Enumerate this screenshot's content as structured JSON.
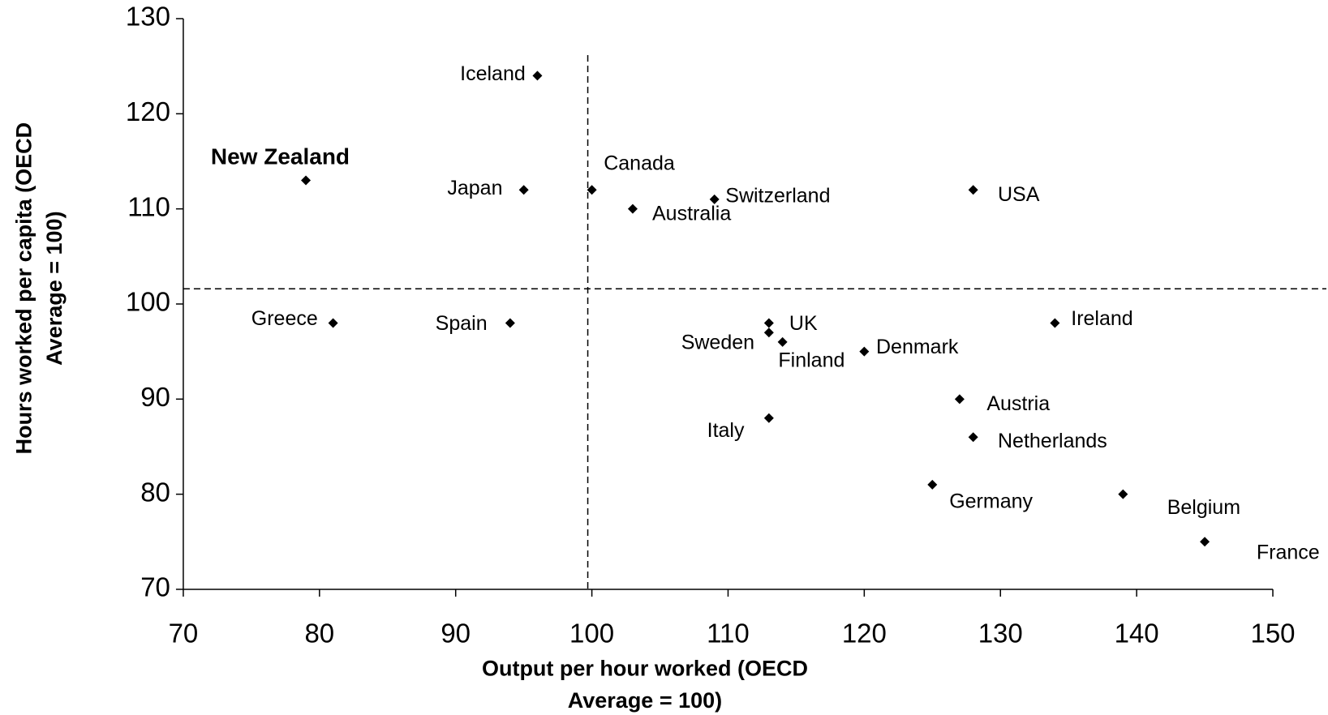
{
  "chart_data": {
    "type": "scatter",
    "x_label": [
      "Output per hour worked (OECD",
      "Average = 100)"
    ],
    "y_label": [
      "Hours worked per capita (OECD",
      "Average = 100)"
    ],
    "xlim": [
      70,
      150
    ],
    "xticks": [
      70,
      80,
      90,
      100,
      110,
      120,
      130,
      140,
      150
    ],
    "ylim": [
      70,
      130
    ],
    "yticks": [
      70,
      80,
      90,
      100,
      110,
      120,
      130
    ],
    "color": "#000000",
    "reference_lines": {
      "x": 99.7,
      "y": 101.6
    },
    "points": [
      {
        "label": "New Zealand",
        "x": 79,
        "y": 113,
        "bold": true
      },
      {
        "label": "Greece",
        "x": 81,
        "y": 98
      },
      {
        "label": "Spain",
        "x": 94,
        "y": 98
      },
      {
        "label": "Iceland",
        "x": 96,
        "y": 124
      },
      {
        "label": "Japan",
        "x": 95,
        "y": 112
      },
      {
        "label": "Canada",
        "x": 100,
        "y": 112
      },
      {
        "label": "Australia",
        "x": 103,
        "y": 110
      },
      {
        "label": "Switzerland",
        "x": 109,
        "y": 111
      },
      {
        "label": "USA",
        "x": 128,
        "y": 112
      },
      {
        "label": "UK",
        "x": 113,
        "y": 98
      },
      {
        "label": "Sweden",
        "x": 113,
        "y": 97
      },
      {
        "label": "Finland",
        "x": 114,
        "y": 96
      },
      {
        "label": "Denmark",
        "x": 120,
        "y": 95
      },
      {
        "label": "Ireland",
        "x": 134,
        "y": 98
      },
      {
        "label": "Austria",
        "x": 127,
        "y": 90
      },
      {
        "label": "Italy",
        "x": 113,
        "y": 88
      },
      {
        "label": "Netherlands",
        "x": 128,
        "y": 86
      },
      {
        "label": "Germany",
        "x": 125,
        "y": 81
      },
      {
        "label": "Belgium",
        "x": 139,
        "y": 80
      },
      {
        "label": "France",
        "x": 145,
        "y": 75
      }
    ]
  }
}
